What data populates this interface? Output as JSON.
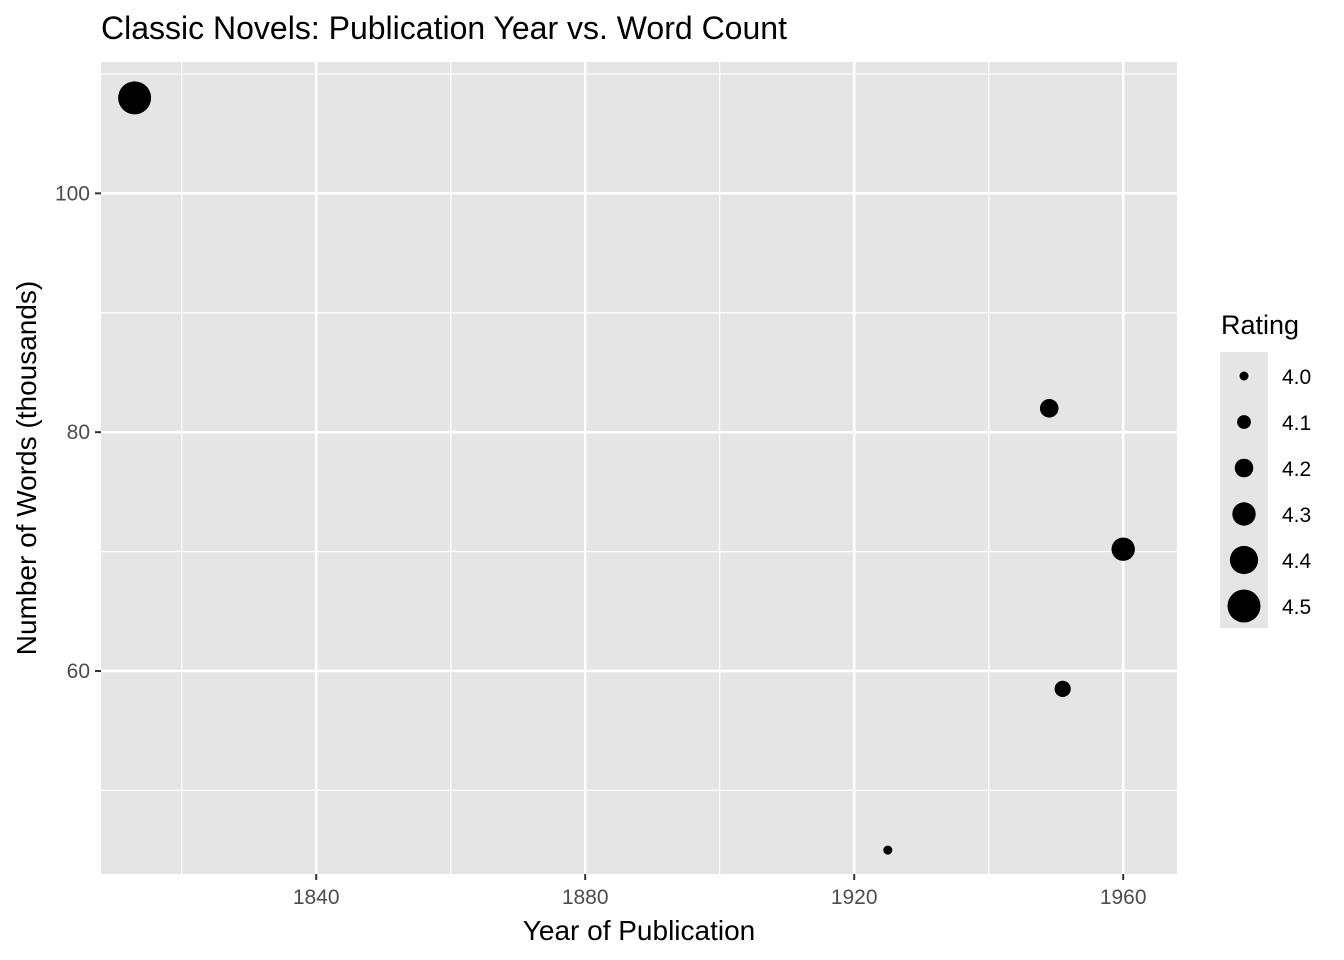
{
  "chart_data": {
    "type": "scatter",
    "title": "Classic Novels: Publication Year vs. Word Count",
    "xlabel": "Year of Publication",
    "ylabel": "Number of Words (thousands)",
    "xlim": [
      1808,
      1968
    ],
    "ylim": [
      43,
      111
    ],
    "x_ticks": [
      1840,
      1880,
      1920,
      1960
    ],
    "y_ticks": [
      60,
      80,
      100
    ],
    "grid": true,
    "panel_background": "#e5e5e5",
    "grid_color": "#ffffff",
    "point_color": "#000000",
    "points": [
      {
        "x": 1813,
        "y": 108,
        "rating": 4.5
      },
      {
        "x": 1925,
        "y": 45,
        "rating": 4.0
      },
      {
        "x": 1949,
        "y": 82,
        "rating": 4.2
      },
      {
        "x": 1951,
        "y": 58.5,
        "rating": 4.15
      },
      {
        "x": 1960,
        "y": 70.2,
        "rating": 4.3
      }
    ],
    "legend": {
      "title": "Rating",
      "placement": "right",
      "entries": [
        "4.0",
        "4.1",
        "4.2",
        "4.3",
        "4.4",
        "4.5"
      ],
      "values": [
        4.0,
        4.1,
        4.2,
        4.3,
        4.4,
        4.5
      ]
    }
  }
}
